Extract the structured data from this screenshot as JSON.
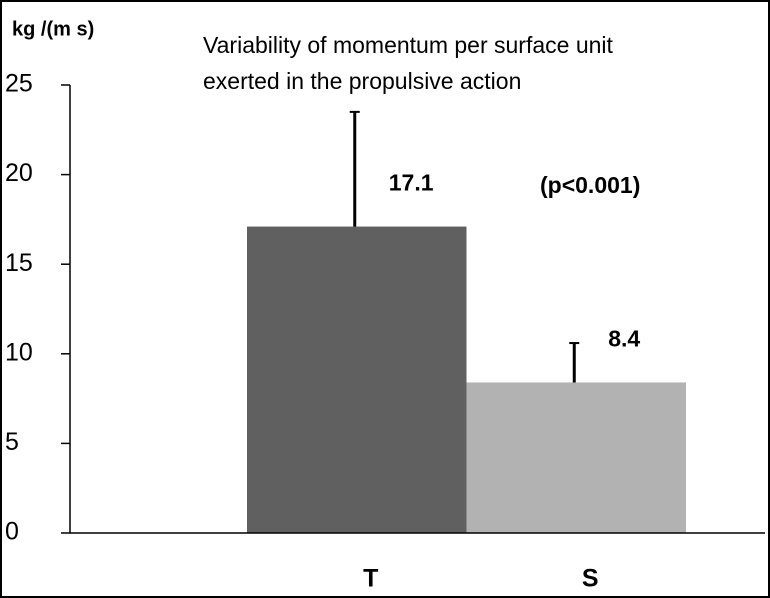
{
  "chart_data": {
    "type": "bar",
    "title": [
      "Variability of momentum per surface unit",
      "exerted in the propulsive action"
    ],
    "ylabel": "kg /(m s)",
    "annotation": "(p<0.001)",
    "categories": [
      "T",
      "S"
    ],
    "values": [
      17.1,
      8.4
    ],
    "errors": [
      6.4,
      2.2
    ],
    "colors": [
      "#606060",
      "#b2b2b2"
    ],
    "ylim": [
      0,
      25
    ],
    "yticks": [
      0,
      5,
      10,
      15,
      20,
      25
    ],
    "grid": false
  }
}
